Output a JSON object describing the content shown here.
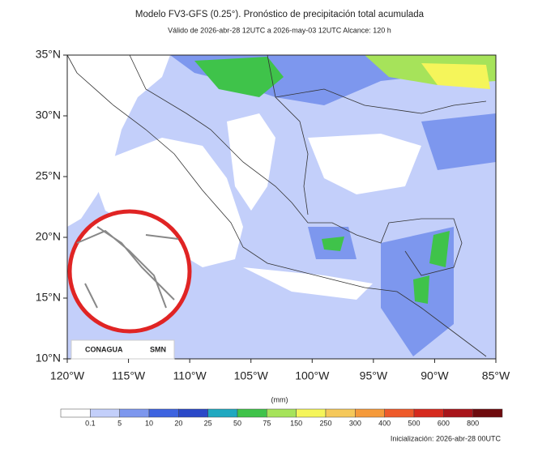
{
  "header": {
    "title": "Modelo FV3-GFS (0.25°). Pronóstico de precipitación total acumulada",
    "subtitle": "Válido de 2026-abr-28 12UTC a 2026-may-03 12UTC    Alcance: 120 h"
  },
  "map": {
    "lat_ticks": [
      {
        "value": 35,
        "label": "35°N"
      },
      {
        "value": 30,
        "label": "30°N"
      },
      {
        "value": 25,
        "label": "25°N"
      },
      {
        "value": 20,
        "label": "20°N"
      },
      {
        "value": 15,
        "label": "15°N"
      },
      {
        "value": 10,
        "label": "10°N"
      }
    ],
    "lon_ticks": [
      {
        "value": -120,
        "label": "120°W"
      },
      {
        "value": -115,
        "label": "115°W"
      },
      {
        "value": -110,
        "label": "110°W"
      },
      {
        "value": -105,
        "label": "105°W"
      },
      {
        "value": -100,
        "label": "100°W"
      },
      {
        "value": -95,
        "label": "95°W"
      },
      {
        "value": -90,
        "label": "90°W"
      },
      {
        "value": -85,
        "label": "85°W"
      }
    ],
    "logos": [
      "CONAGUA",
      "SMN"
    ]
  },
  "colorbar": {
    "unit": "(mm)",
    "colors": [
      "#ffffff",
      "#c3cffa",
      "#7d97ee",
      "#3d63e0",
      "#2a48c8",
      "#1fa8c0",
      "#3fc34a",
      "#a6e35a",
      "#f5f55a",
      "#f5c85a",
      "#f59a3a",
      "#ee5a2a",
      "#d62a1e",
      "#a8141a",
      "#6e0b0e"
    ],
    "levels": [
      0.1,
      5,
      10,
      20,
      25,
      50,
      75,
      150,
      250,
      300,
      400,
      500,
      600,
      800
    ]
  },
  "footer": {
    "init": "Inicialización: 2026-abr-28 00UTC"
  }
}
